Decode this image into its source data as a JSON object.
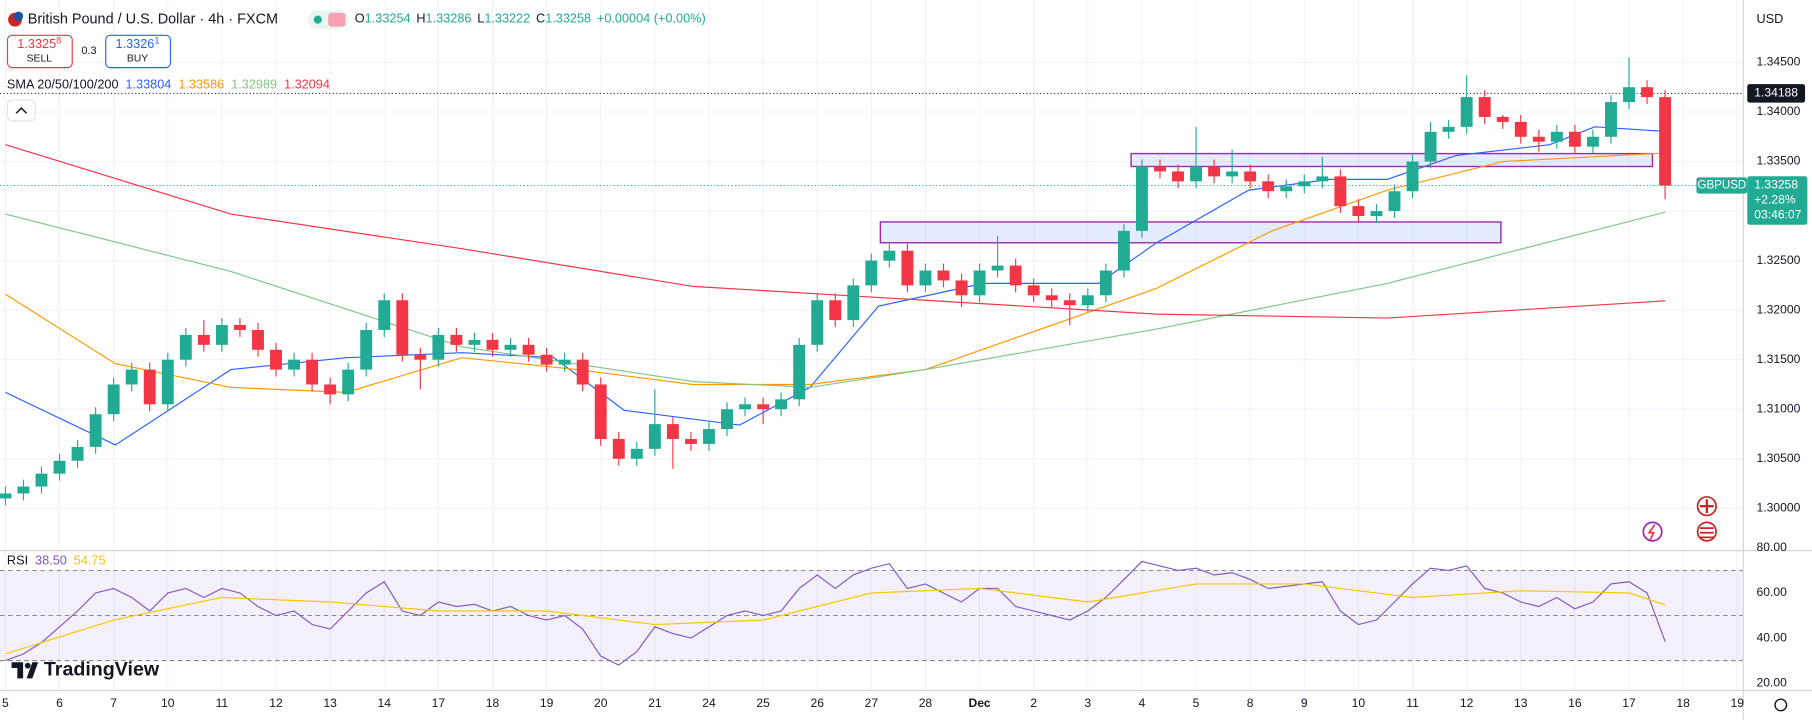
{
  "header": {
    "title": "British Pound / U.S. Dollar · 4h · FXCM",
    "ohlc": [
      {
        "k": "O",
        "v": "1.33254"
      },
      {
        "k": "H",
        "v": "1.33286"
      },
      {
        "k": "L",
        "v": "1.33222"
      },
      {
        "k": "C",
        "v": "1.33258"
      }
    ],
    "change": "+0.00004 (+0.00%)",
    "sell": {
      "price": "1.3325",
      "sup": "8",
      "label": "SELL"
    },
    "spread": "0.3",
    "buy": {
      "price": "1.3326",
      "sup": "1",
      "label": "BUY"
    },
    "currency": "USD",
    "logo": "TradingView"
  },
  "chart_data": {
    "type": "candlestick",
    "up_color": "#22ab94",
    "down_color": "#f23645",
    "open": [
      1.301,
      1.3015,
      1.3022,
      1.3035,
      1.3048,
      1.3062,
      1.3095,
      1.3125,
      1.314,
      1.3105,
      1.315,
      1.3175,
      1.3165,
      1.3185,
      1.318,
      1.316,
      1.314,
      1.315,
      1.3125,
      1.3115,
      1.314,
      1.318,
      1.321,
      1.3155,
      1.315,
      1.3175,
      1.3165,
      1.317,
      1.316,
      1.3165,
      1.3155,
      1.3145,
      1.315,
      1.3125,
      1.307,
      1.305,
      1.306,
      1.3085,
      1.307,
      1.3065,
      1.308,
      1.31,
      1.3105,
      1.31,
      1.311,
      1.3165,
      1.321,
      1.319,
      1.3225,
      1.325,
      1.326,
      1.3225,
      1.324,
      1.323,
      1.3215,
      1.324,
      1.3245,
      1.3225,
      1.3215,
      1.321,
      1.3205,
      1.3215,
      1.324,
      1.328,
      1.3345,
      1.334,
      1.333,
      1.3345,
      1.3335,
      1.334,
      1.333,
      1.332,
      1.3325,
      1.333,
      1.3335,
      1.3305,
      1.3295,
      1.33,
      1.332,
      1.335,
      1.338,
      1.3385,
      1.3415,
      1.3395,
      1.339,
      1.3375,
      1.337,
      1.338,
      1.3365,
      1.3375,
      1.341,
      1.3425,
      1.3415
    ],
    "high": [
      1.3022,
      1.3029,
      1.3042,
      1.3055,
      1.3069,
      1.3102,
      1.3132,
      1.3147,
      1.3147,
      1.3157,
      1.3182,
      1.319,
      1.3192,
      1.3192,
      1.3187,
      1.3167,
      1.3157,
      1.3157,
      1.3132,
      1.3147,
      1.3187,
      1.3217,
      1.3217,
      1.3162,
      1.3182,
      1.3182,
      1.3177,
      1.3177,
      1.3172,
      1.3172,
      1.3162,
      1.3157,
      1.3157,
      1.3132,
      1.3077,
      1.3067,
      1.312,
      1.3092,
      1.3077,
      1.3087,
      1.3107,
      1.3112,
      1.3112,
      1.3117,
      1.3172,
      1.3217,
      1.3217,
      1.3232,
      1.3257,
      1.3267,
      1.3267,
      1.3247,
      1.3247,
      1.3237,
      1.3247,
      1.3275,
      1.3252,
      1.3232,
      1.3222,
      1.3217,
      1.3222,
      1.3247,
      1.3287,
      1.3352,
      1.3352,
      1.3347,
      1.3385,
      1.3352,
      1.3362,
      1.3347,
      1.3337,
      1.3332,
      1.3337,
      1.3355,
      1.3342,
      1.3312,
      1.3307,
      1.3327,
      1.3357,
      1.339,
      1.3392,
      1.3437,
      1.3422,
      1.3397,
      1.3397,
      1.3382,
      1.3387,
      1.3387,
      1.3382,
      1.3417,
      1.3455,
      1.3432,
      1.3422
    ],
    "low": [
      1.3003,
      1.3008,
      1.3015,
      1.3028,
      1.3041,
      1.3055,
      1.3088,
      1.3118,
      1.3098,
      1.3098,
      1.3143,
      1.3158,
      1.3158,
      1.3173,
      1.3153,
      1.3133,
      1.3133,
      1.3118,
      1.3105,
      1.3108,
      1.3133,
      1.3173,
      1.3148,
      1.312,
      1.3143,
      1.3158,
      1.3158,
      1.3153,
      1.3153,
      1.3148,
      1.3138,
      1.3138,
      1.3118,
      1.3063,
      1.3043,
      1.3043,
      1.3053,
      1.304,
      1.3058,
      1.3058,
      1.3073,
      1.3093,
      1.3085,
      1.3093,
      1.3103,
      1.3158,
      1.3183,
      1.3183,
      1.3218,
      1.3243,
      1.3218,
      1.3218,
      1.3223,
      1.3203,
      1.3208,
      1.3233,
      1.3218,
      1.3208,
      1.3203,
      1.3185,
      1.3198,
      1.3208,
      1.3233,
      1.3273,
      1.3333,
      1.3323,
      1.3323,
      1.3328,
      1.3328,
      1.3323,
      1.3313,
      1.3313,
      1.3318,
      1.3323,
      1.3298,
      1.3288,
      1.3288,
      1.3293,
      1.3313,
      1.3343,
      1.3373,
      1.3378,
      1.3388,
      1.3383,
      1.3368,
      1.336,
      1.3363,
      1.3358,
      1.3358,
      1.3368,
      1.3403,
      1.3408,
      1.3312
    ],
    "close": [
      1.3015,
      1.3022,
      1.3035,
      1.3048,
      1.3062,
      1.3095,
      1.3125,
      1.314,
      1.3105,
      1.315,
      1.3175,
      1.3165,
      1.3185,
      1.318,
      1.316,
      1.314,
      1.315,
      1.3125,
      1.3115,
      1.314,
      1.318,
      1.321,
      1.3155,
      1.315,
      1.3175,
      1.3165,
      1.317,
      1.316,
      1.3165,
      1.3155,
      1.3145,
      1.315,
      1.3125,
      1.307,
      1.305,
      1.306,
      1.3085,
      1.307,
      1.3065,
      1.308,
      1.31,
      1.3105,
      1.31,
      1.311,
      1.3165,
      1.321,
      1.319,
      1.3225,
      1.325,
      1.326,
      1.3225,
      1.324,
      1.323,
      1.3215,
      1.324,
      1.3245,
      1.3225,
      1.3215,
      1.321,
      1.3205,
      1.3215,
      1.324,
      1.328,
      1.3345,
      1.334,
      1.333,
      1.3345,
      1.3335,
      1.334,
      1.333,
      1.332,
      1.3325,
      1.333,
      1.3335,
      1.3305,
      1.3295,
      1.33,
      1.332,
      1.335,
      1.338,
      1.3385,
      1.3415,
      1.3395,
      1.339,
      1.3375,
      1.337,
      1.338,
      1.3365,
      1.3375,
      1.341,
      1.3425,
      1.3415,
      1.33258
    ],
    "price_tag": {
      "symbol": "GBPUSD",
      "change": "+2.28%",
      "countdown": "03:46:07"
    },
    "hline": 1.34188,
    "zones": [
      {
        "x": [
          48.5,
          82.9
        ],
        "y": [
          1.3268,
          1.3289
        ]
      },
      {
        "x": [
          62.4,
          91.3
        ],
        "y": [
          1.3345,
          1.3358
        ]
      }
    ],
    "sma": {
      "label": "SMA 20/50/100/200",
      "lines": [
        {
          "color": "#2962ff",
          "x": [
            0,
            6.1,
            12.5,
            18.9,
            25.3,
            30.4,
            34.3,
            40.7,
            44.6,
            48.4,
            54.2,
            60.6,
            63.8,
            68.9,
            73.4,
            76.6,
            80.4,
            85.6,
            88.1,
            92
          ],
          "values": [
            1.3117,
            1.3064,
            1.314,
            1.3152,
            1.3157,
            1.3152,
            1.3099,
            1.3084,
            1.3122,
            1.3204,
            1.3227,
            1.3227,
            1.3268,
            1.3321,
            1.3332,
            1.3332,
            1.3356,
            1.3367,
            1.3385,
            1.33804
          ]
        },
        {
          "color": "#ff9800",
          "x": [
            0,
            6.1,
            12.5,
            18.9,
            25.3,
            31.7,
            38.1,
            44.6,
            51,
            57.4,
            63.8,
            70.2,
            76.6,
            83,
            92
          ],
          "values": [
            1.3216,
            1.3146,
            1.3122,
            1.3117,
            1.3152,
            1.314,
            1.3125,
            1.3125,
            1.314,
            1.3181,
            1.3222,
            1.328,
            1.3321,
            1.335,
            1.33586
          ]
        },
        {
          "color": "#81c784",
          "x": [
            0,
            12.5,
            25.3,
            38.1,
            44.6,
            51,
            63.8,
            76.6,
            92
          ],
          "values": [
            1.3297,
            1.3239,
            1.3163,
            1.3128,
            1.3122,
            1.314,
            1.3181,
            1.3227,
            1.32989
          ]
        },
        {
          "color": "#f23645",
          "x": [
            0,
            12.5,
            25.3,
            38.1,
            51,
            63.8,
            76.6,
            92
          ],
          "values": [
            1.3367,
            1.3297,
            1.3262,
            1.3224,
            1.321,
            1.3196,
            1.3192,
            1.32094
          ]
        }
      ]
    },
    "xlim": [
      -0.3,
      96.3
    ],
    "ylim": [
      1.2959,
      1.3513
    ],
    "yticks": [
      {
        "value": 1.3,
        "label": "1.30000"
      },
      {
        "value": 1.305,
        "label": "1.30500"
      },
      {
        "value": 1.31,
        "label": "1.31000"
      },
      {
        "value": 1.315,
        "label": "1.31500"
      },
      {
        "value": 1.32,
        "label": "1.32000"
      },
      {
        "value": 1.325,
        "label": "1.32500"
      },
      {
        "value": 1.33,
        "label": "1.33000"
      },
      {
        "value": 1.335,
        "label": "1.33500"
      },
      {
        "value": 1.34,
        "label": "1.34000"
      },
      {
        "value": 1.345,
        "label": "1.34500"
      }
    ],
    "xticks": [
      {
        "value": 0,
        "label": "5"
      },
      {
        "value": 3,
        "label": "6"
      },
      {
        "value": 6,
        "label": "7"
      },
      {
        "value": 9,
        "label": "10"
      },
      {
        "value": 12,
        "label": "11"
      },
      {
        "value": 15,
        "label": "12"
      },
      {
        "value": 18,
        "label": "13"
      },
      {
        "value": 21,
        "label": "14"
      },
      {
        "value": 24,
        "label": "17"
      },
      {
        "value": 27,
        "label": "18"
      },
      {
        "value": 30,
        "label": "19"
      },
      {
        "value": 33,
        "label": "20"
      },
      {
        "value": 36,
        "label": "21"
      },
      {
        "value": 39,
        "label": "24"
      },
      {
        "value": 42,
        "label": "25"
      },
      {
        "value": 45,
        "label": "26"
      },
      {
        "value": 48,
        "label": "27"
      },
      {
        "value": 51,
        "label": "28"
      },
      {
        "value": 54,
        "label": "Dec"
      },
      {
        "value": 57,
        "label": "2"
      },
      {
        "value": 60,
        "label": "3"
      },
      {
        "value": 63,
        "label": "4"
      },
      {
        "value": 66,
        "label": "5"
      },
      {
        "value": 69,
        "label": "8"
      },
      {
        "value": 72,
        "label": "9"
      },
      {
        "value": 75,
        "label": "10"
      },
      {
        "value": 78,
        "label": "11"
      },
      {
        "value": 81,
        "label": "12"
      },
      {
        "value": 84,
        "label": "13"
      },
      {
        "value": 87,
        "label": "16"
      },
      {
        "value": 90,
        "label": "17"
      },
      {
        "value": 93,
        "label": "18"
      },
      {
        "value": 96,
        "label": "19"
      }
    ],
    "rsi": {
      "label": "RSI",
      "color": "#7e57c2",
      "ma_color": "#f7c600",
      "values": [
        30,
        33,
        38,
        45,
        52,
        60,
        62,
        58,
        52,
        60,
        62,
        58,
        62,
        60,
        54,
        50,
        52,
        46,
        44,
        52,
        60,
        65,
        52,
        50,
        56,
        54,
        55,
        52,
        54,
        50,
        48,
        50,
        44,
        32,
        28,
        34,
        45,
        42,
        40,
        45,
        50,
        52,
        50,
        52,
        62,
        68,
        62,
        68,
        71,
        73,
        62,
        64,
        60,
        56,
        62,
        62,
        54,
        52,
        50,
        48,
        52,
        58,
        66,
        74,
        72,
        70,
        71,
        68,
        69,
        66,
        62,
        63,
        64,
        65,
        52,
        46,
        48,
        56,
        64,
        71,
        70,
        72,
        62,
        60,
        56,
        54,
        58,
        53,
        56,
        64,
        65,
        60,
        38.5
      ],
      "last_label": "38.50",
      "ma_x": [
        0,
        6,
        12,
        18,
        24,
        30,
        36,
        42,
        48,
        54,
        60,
        66,
        72,
        78,
        84,
        90,
        92
      ],
      "ma_values": [
        33,
        48,
        58,
        56,
        52,
        52,
        46,
        48,
        60,
        62,
        56,
        64,
        64,
        58,
        61,
        60,
        54.75
      ],
      "ma_last_label": "54.75",
      "levels": [
        30,
        50,
        70
      ],
      "ylim": [
        17,
        78
      ],
      "yticks": [
        {
          "value": 20,
          "label": "20.00"
        },
        {
          "value": 40,
          "label": "40.00"
        },
        {
          "value": 60,
          "label": "60.00"
        },
        {
          "value": 80,
          "label": "80.00"
        }
      ]
    }
  }
}
